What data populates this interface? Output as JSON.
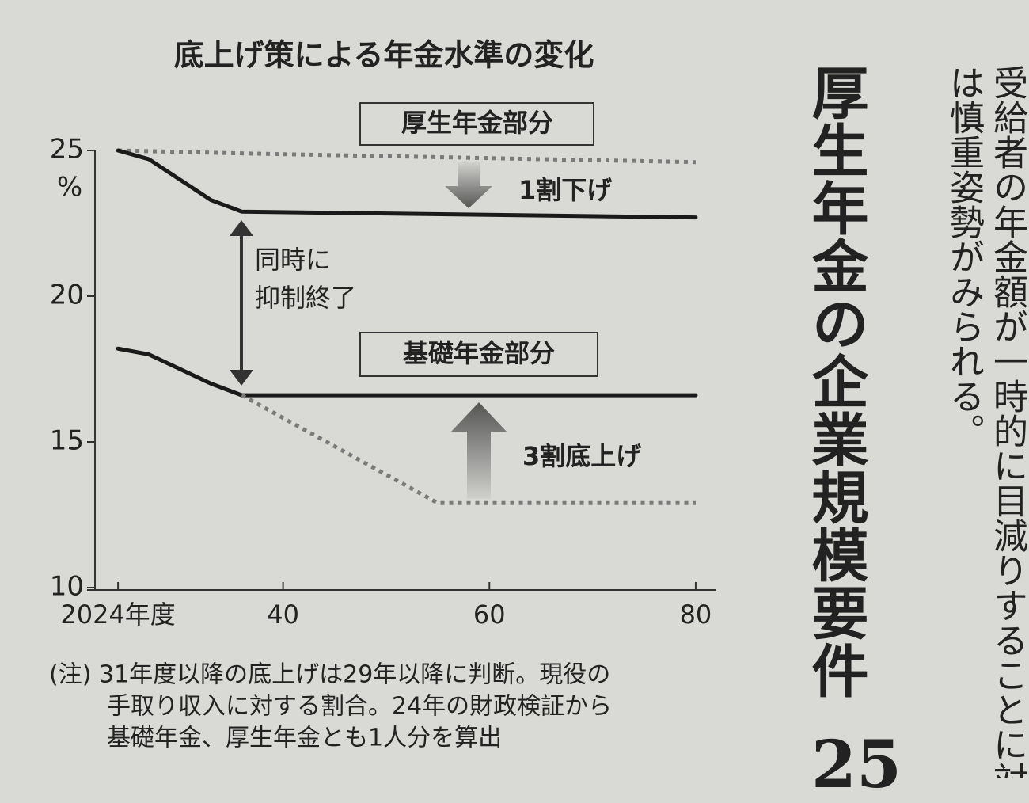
{
  "chart_data": {
    "type": "line",
    "title": "底上げ策による年金水準の変化",
    "xlim": [
      2021,
      2082
    ],
    "xticks": [
      {
        "value": 2024,
        "label": "2024年度"
      },
      {
        "value": 2040,
        "label": "40"
      },
      {
        "value": 2060,
        "label": "60"
      },
      {
        "value": 2080,
        "label": "80"
      }
    ],
    "ylim": [
      10,
      25
    ],
    "yticks": [
      10,
      15,
      20,
      25
    ],
    "y_unit": "%",
    "series": [
      {
        "color": "#7a7a7a",
        "dashed": true,
        "x": [
          2024,
          2036,
          2080
        ],
        "values": [
          25,
          24.9,
          24.6
        ]
      },
      {
        "color": "#1a1a1a",
        "dashed": false,
        "x": [
          2024,
          2027,
          2030,
          2033,
          2036,
          2080
        ],
        "values": [
          25,
          24.7,
          24.0,
          23.3,
          22.9,
          22.7
        ]
      },
      {
        "color": "#1a1a1a",
        "dashed": false,
        "x": [
          2024,
          2027,
          2030,
          2033,
          2036,
          2080
        ],
        "values": [
          18.2,
          18.0,
          17.5,
          17.0,
          16.6,
          16.6
        ]
      },
      {
        "color": "#7a7a7a",
        "dashed": true,
        "x": [
          2036,
          2055,
          2080
        ],
        "values": [
          16.6,
          12.9,
          12.9
        ]
      }
    ],
    "annotations": [
      "厚生年金部分",
      "1割下げ",
      "同時に",
      "抑制終了",
      "基礎年金部分",
      "3割底上げ"
    ],
    "note": [
      "(注) 31年度以降の底上げは29年以降に判断。現役の",
      "手取り収入に対する割合。24年の財政検証から",
      "基礎年金、厚生年金とも1人分を算出"
    ]
  },
  "article": {
    "headline": "厚生年金の企業規模要件",
    "number": "25",
    "body": [
      "受給者の年金額が一時的に目減りすることに対",
      "は慎重姿勢がみられる。"
    ]
  }
}
